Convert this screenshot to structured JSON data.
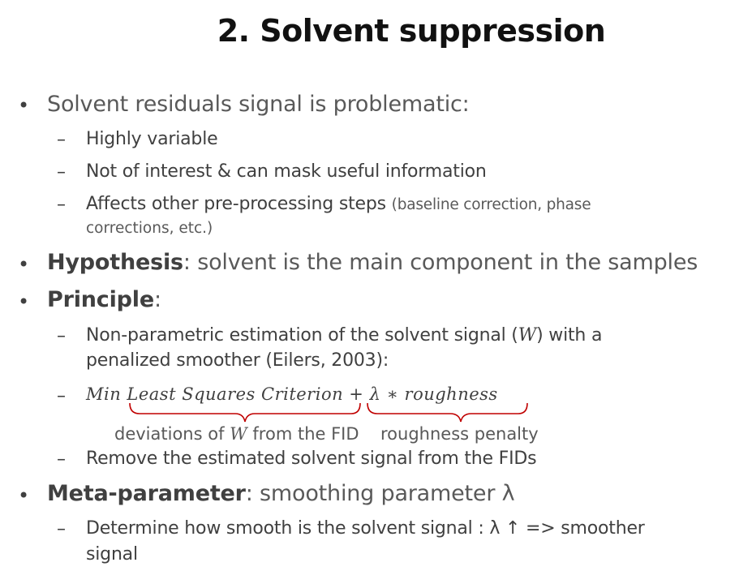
{
  "slide": {
    "title": "2. Solvent suppression",
    "items": [
      {
        "text": "Solvent residuals signal is problematic:",
        "sub": [
          {
            "text": "Highly variable"
          },
          {
            "text": "Not of interest & can mask useful information"
          },
          {
            "text": "Affects other pre-processing steps",
            "small": "(baseline correction, phase",
            "small2": "corrections, etc.)"
          }
        ]
      },
      {
        "bold": "Hypothesis",
        "text": ": solvent is the main component in the samples"
      },
      {
        "bold": "Principle",
        "text": ":",
        "sub": [
          {
            "line1a": "Non-parametric estimation of the solvent signal (",
            "var": "W",
            "line1b": ") with a",
            "line2": "penalized smoother (Eilers, 2003):"
          },
          {
            "formula_left": "Min Least Squares Criterion",
            "formula_plus": "+",
            "formula_right": "λ ∗ roughness"
          },
          {
            "annotation_left_a": "deviations of ",
            "annotation_var": "W",
            "annotation_left_b": " from the FID",
            "annotation_right": "roughness penalty"
          },
          {
            "text": "Remove the estimated solvent signal from the FIDs"
          }
        ]
      },
      {
        "bold": "Meta-parameter",
        "text": ": smoothing parameter λ",
        "sub": [
          {
            "line1": "Determine how smooth is the solvent signal : λ ↑ => smoother",
            "line2": "signal"
          }
        ]
      }
    ],
    "bullet_char": "•",
    "dash_char": "–",
    "brace_color": "#c00000"
  }
}
